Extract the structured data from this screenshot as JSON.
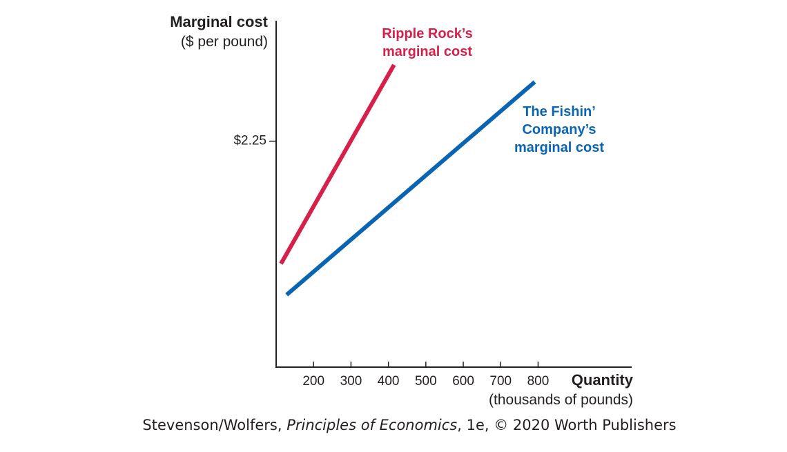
{
  "chart_data": {
    "type": "line",
    "y_label": "Marginal cost",
    "y_label_sub": "($ per pound)",
    "x_label": "Quantity",
    "x_label_sub": "(thousands of pounds)",
    "xlim": [
      100,
      1050
    ],
    "xticks": [
      200,
      300,
      400,
      500,
      600,
      700,
      800
    ],
    "ylim": [
      0,
      3.45
    ],
    "yticks": [
      {
        "value": 2.25,
        "label": "$2.25"
      }
    ],
    "series": [
      {
        "name": "Ripple Rock’s marginal cost",
        "color": "#d6204a",
        "x": [
          113,
          415
        ],
        "values": [
          1.03,
          3.01
        ]
      },
      {
        "name": "The Fishin’ Company’s marginal cost",
        "color": "#0a64b4",
        "x": [
          128,
          791
        ],
        "values": [
          0.72,
          2.84
        ]
      }
    ],
    "source": {
      "prefix": "Stevenson/Wolfers, ",
      "book": "Principles of Economics",
      "suffix": ", 1e, © 2020 Worth Publishers"
    }
  }
}
